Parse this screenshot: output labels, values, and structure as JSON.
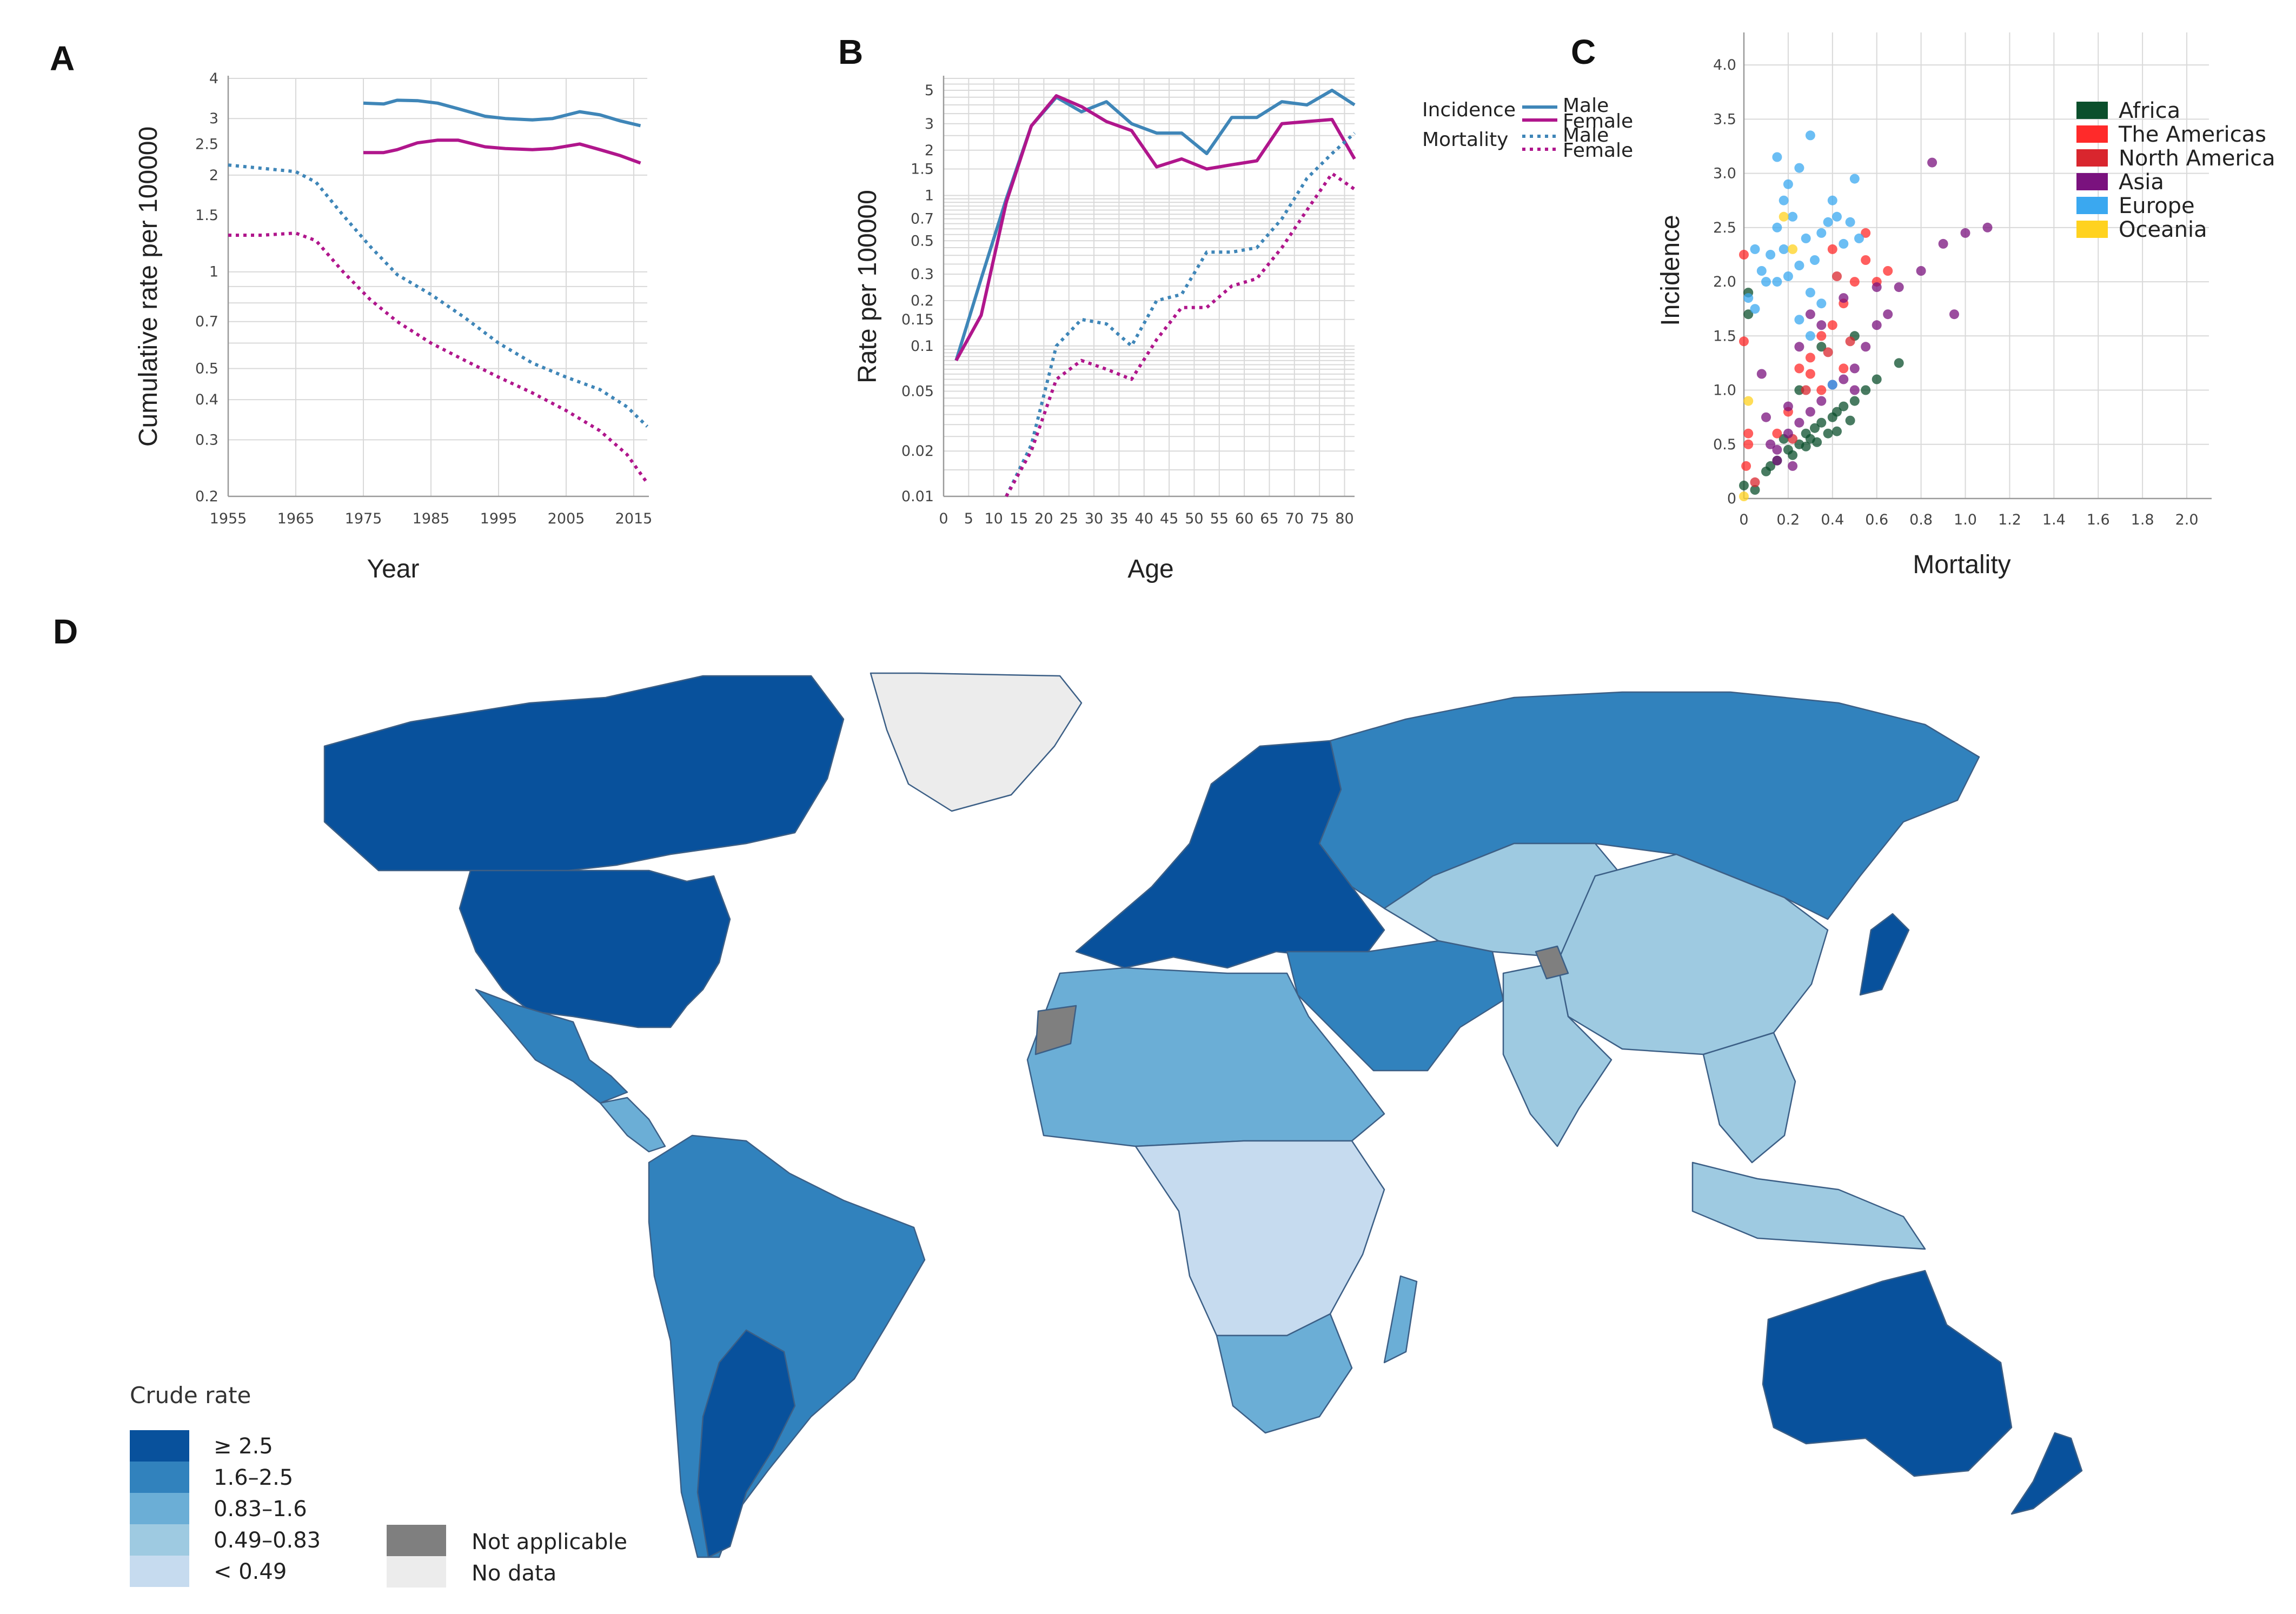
{
  "panels": {
    "A": "A",
    "B": "B",
    "C": "C",
    "D": "D"
  },
  "colors": {
    "incidence": "#3f86b8",
    "female": "#b0168c",
    "Africa": "#0b4f2c",
    "The Americas": "#ff2a2a",
    "North America": "#d9262e",
    "Asia": "#7a127e",
    "Europe": "#3aa8f0",
    "Oceania": "#ffd21f",
    "rate_ge_2_5": "#08519c",
    "rate_1_6_2_5": "#3182bd",
    "rate_0_83_1_6": "#6baed6",
    "rate_0_49_0_83": "#9ecae1",
    "rate_lt_0_49": "#c6dbef",
    "not_applicable": "#7f7f7f",
    "no_data": "#ececec"
  },
  "chart_data": [
    {
      "id": "A",
      "type": "line",
      "xlabel": "Year",
      "ylabel": "Cumulative rate per 100000",
      "yscale": "log",
      "xlim": [
        1955,
        2017
      ],
      "ylim": [
        0.2,
        4
      ],
      "xticks": [
        1955,
        1965,
        1975,
        1985,
        1995,
        2005,
        2015
      ],
      "yticks": [
        0.2,
        0.3,
        0.4,
        0.5,
        0.7,
        1,
        1.5,
        2,
        2.5,
        3,
        4
      ],
      "ytick_labels": [
        "0.2",
        "0.3",
        "0.4",
        "0.5",
        "0.7",
        "1",
        "1.5",
        "2",
        "2.5",
        "3",
        "4"
      ],
      "series": [
        {
          "name": "Incidence Male",
          "style": "solid",
          "color": "#3f86b8",
          "x": [
            1975,
            1978,
            1980,
            1983,
            1986,
            1989,
            1993,
            1996,
            2000,
            2003,
            2007,
            2010,
            2013,
            2016
          ],
          "y": [
            3.35,
            3.33,
            3.42,
            3.41,
            3.35,
            3.22,
            3.05,
            3.0,
            2.97,
            3.0,
            3.15,
            3.08,
            2.95,
            2.85
          ]
        },
        {
          "name": "Incidence Female",
          "style": "solid",
          "color": "#b0168c",
          "x": [
            1975,
            1978,
            1980,
            1983,
            1986,
            1989,
            1993,
            1996,
            2000,
            2003,
            2007,
            2010,
            2013,
            2016
          ],
          "y": [
            2.35,
            2.35,
            2.4,
            2.52,
            2.57,
            2.57,
            2.45,
            2.42,
            2.4,
            2.42,
            2.5,
            2.4,
            2.3,
            2.18
          ]
        },
        {
          "name": "Mortality Male",
          "style": "dotted",
          "color": "#3f86b8",
          "x": [
            1955,
            1960,
            1965,
            1968,
            1972,
            1976,
            1980,
            1985,
            1990,
            1995,
            2000,
            2005,
            2010,
            2014,
            2017
          ],
          "y": [
            2.15,
            2.1,
            2.05,
            1.9,
            1.5,
            1.2,
            0.98,
            0.85,
            0.72,
            0.6,
            0.52,
            0.47,
            0.43,
            0.38,
            0.33
          ]
        },
        {
          "name": "Mortality Female",
          "style": "dotted",
          "color": "#b0168c",
          "x": [
            1955,
            1960,
            1965,
            1968,
            1972,
            1976,
            1980,
            1985,
            1990,
            1995,
            2000,
            2005,
            2010,
            2014,
            2017
          ],
          "y": [
            1.3,
            1.3,
            1.32,
            1.25,
            1.0,
            0.82,
            0.7,
            0.6,
            0.53,
            0.47,
            0.42,
            0.37,
            0.32,
            0.27,
            0.22
          ]
        }
      ]
    },
    {
      "id": "B",
      "type": "line",
      "xlabel": "Age",
      "ylabel": "Rate per 100000",
      "yscale": "log",
      "xlim": [
        0,
        82
      ],
      "ylim": [
        0.01,
        6
      ],
      "xticks": [
        0,
        5,
        10,
        15,
        20,
        25,
        30,
        35,
        40,
        45,
        50,
        55,
        60,
        65,
        70,
        75,
        80
      ],
      "yticks": [
        0.01,
        0.02,
        0.05,
        0.1,
        0.15,
        0.2,
        0.3,
        0.5,
        0.7,
        1,
        1.5,
        2,
        3,
        5
      ],
      "ytick_labels": [
        "0.01",
        "0.02",
        "0.05",
        "0.1",
        "0.15",
        "0.2",
        "0.3",
        "0.5",
        "0.7",
        "1",
        "1.5",
        "2",
        "3",
        "5"
      ],
      "legend": {
        "incidence_label": "Incidence",
        "mortality_label": "Mortality",
        "male_label": "Male",
        "female_label": "Female"
      },
      "series": [
        {
          "name": "Incidence Male",
          "style": "solid",
          "color": "#3f86b8",
          "x": [
            2.5,
            7.5,
            12.5,
            17.5,
            22.5,
            27.5,
            32.5,
            37.5,
            42.5,
            47.5,
            52.5,
            57.5,
            62.5,
            67.5,
            72.5,
            77.5,
            82
          ],
          "y": [
            0.08,
            0.28,
            0.95,
            2.9,
            4.5,
            3.6,
            4.2,
            3.0,
            2.6,
            2.6,
            1.9,
            3.3,
            3.3,
            4.2,
            4.0,
            5.0,
            4.0
          ]
        },
        {
          "name": "Incidence Female",
          "style": "solid",
          "color": "#b0168c",
          "x": [
            2.5,
            7.5,
            12.5,
            17.5,
            22.5,
            27.5,
            32.5,
            37.5,
            42.5,
            47.5,
            52.5,
            57.5,
            62.5,
            67.5,
            72.5,
            77.5,
            82
          ],
          "y": [
            0.08,
            0.16,
            0.9,
            2.9,
            4.6,
            3.9,
            3.1,
            2.7,
            1.55,
            1.75,
            1.5,
            1.6,
            1.7,
            3.0,
            3.1,
            3.2,
            1.75
          ]
        },
        {
          "name": "Mortality Male",
          "style": "dotted",
          "color": "#3f86b8",
          "x": [
            12.5,
            17.5,
            22.5,
            27.5,
            32.5,
            37.5,
            42.5,
            47.5,
            52.5,
            57.5,
            62.5,
            67.5,
            72.5,
            77.5,
            82
          ],
          "y": [
            0.01,
            0.022,
            0.1,
            0.15,
            0.14,
            0.1,
            0.2,
            0.22,
            0.42,
            0.42,
            0.45,
            0.7,
            1.3,
            1.9,
            2.6
          ]
        },
        {
          "name": "Mortality Female",
          "style": "dotted",
          "color": "#b0168c",
          "x": [
            12.5,
            17.5,
            22.5,
            27.5,
            32.5,
            37.5,
            42.5,
            47.5,
            52.5,
            57.5,
            62.5,
            67.5,
            72.5,
            77.5,
            82
          ],
          "y": [
            0.01,
            0.02,
            0.06,
            0.08,
            0.07,
            0.06,
            0.11,
            0.18,
            0.18,
            0.25,
            0.28,
            0.45,
            0.8,
            1.4,
            1.1
          ]
        }
      ]
    },
    {
      "id": "C",
      "type": "scatter",
      "xlabel": "Mortality",
      "ylabel": "Incidence",
      "xlim": [
        0,
        2.1
      ],
      "ylim": [
        0,
        4.3
      ],
      "xticks": [
        0,
        0.2,
        0.4,
        0.6,
        0.8,
        1.0,
        1.2,
        1.4,
        1.6,
        1.8,
        2.0
      ],
      "xtick_labels": [
        "0",
        "0.2",
        "0.4",
        "0.6",
        "0.8",
        "1.0",
        "1.2",
        "1.4",
        "1.6",
        "1.8",
        "2.0"
      ],
      "yticks": [
        0,
        0.5,
        1.0,
        1.5,
        2.0,
        2.5,
        3.0,
        3.5,
        4.0
      ],
      "ytick_labels": [
        "0",
        "0.5",
        "1.0",
        "1.5",
        "2.0",
        "2.5",
        "3.0",
        "3.5",
        "4.0"
      ],
      "legend": [
        "Africa",
        "The Americas",
        "North America",
        "Asia",
        "Europe",
        "Oceania"
      ],
      "series": [
        {
          "name": "Africa",
          "color": "#0b4f2c",
          "points": [
            [
              0.0,
              0.12
            ],
            [
              0.05,
              0.08
            ],
            [
              0.12,
              0.3
            ],
            [
              0.15,
              0.35
            ],
            [
              0.2,
              0.45
            ],
            [
              0.22,
              0.4
            ],
            [
              0.25,
              0.5
            ],
            [
              0.28,
              0.6
            ],
            [
              0.3,
              0.55
            ],
            [
              0.32,
              0.65
            ],
            [
              0.35,
              0.7
            ],
            [
              0.38,
              0.6
            ],
            [
              0.4,
              0.75
            ],
            [
              0.42,
              0.8
            ],
            [
              0.45,
              0.85
            ],
            [
              0.5,
              0.9
            ],
            [
              0.55,
              1.0
            ],
            [
              0.6,
              1.1
            ],
            [
              0.7,
              1.25
            ],
            [
              0.5,
              1.5
            ],
            [
              0.35,
              1.4
            ],
            [
              0.25,
              1.0
            ],
            [
              0.18,
              0.55
            ],
            [
              0.1,
              0.25
            ],
            [
              0.28,
              0.48
            ],
            [
              0.33,
              0.52
            ],
            [
              0.42,
              0.62
            ],
            [
              0.48,
              0.72
            ],
            [
              0.02,
              1.7
            ],
            [
              0.02,
              1.9
            ]
          ]
        },
        {
          "name": "The Americas",
          "color": "#ff2a2a",
          "points": [
            [
              0.0,
              2.25
            ],
            [
              0.0,
              1.45
            ],
            [
              0.02,
              0.5
            ],
            [
              0.01,
              0.3
            ],
            [
              0.02,
              0.6
            ],
            [
              0.15,
              0.6
            ],
            [
              0.2,
              0.8
            ],
            [
              0.25,
              1.2
            ],
            [
              0.3,
              1.3
            ],
            [
              0.35,
              1.5
            ],
            [
              0.4,
              1.6
            ],
            [
              0.45,
              1.8
            ],
            [
              0.5,
              2.0
            ],
            [
              0.55,
              2.2
            ],
            [
              0.6,
              2.0
            ],
            [
              0.65,
              2.1
            ],
            [
              0.4,
              2.3
            ],
            [
              0.45,
              1.2
            ],
            [
              0.35,
              1.0
            ],
            [
              0.3,
              1.15
            ],
            [
              0.55,
              2.45
            ]
          ]
        },
        {
          "name": "North America",
          "color": "#d9262e",
          "points": [
            [
              0.05,
              0.15
            ],
            [
              0.22,
              0.55
            ],
            [
              0.28,
              1.0
            ],
            [
              0.38,
              1.35
            ],
            [
              0.42,
              2.05
            ],
            [
              0.48,
              1.45
            ]
          ]
        },
        {
          "name": "Asia",
          "color": "#7a127e",
          "points": [
            [
              0.08,
              1.15
            ],
            [
              0.1,
              0.75
            ],
            [
              0.12,
              0.5
            ],
            [
              0.15,
              0.35
            ],
            [
              0.2,
              0.6
            ],
            [
              0.25,
              0.7
            ],
            [
              0.3,
              0.8
            ],
            [
              0.35,
              0.9
            ],
            [
              0.4,
              1.05
            ],
            [
              0.45,
              1.1
            ],
            [
              0.5,
              1.2
            ],
            [
              0.55,
              1.4
            ],
            [
              0.6,
              1.6
            ],
            [
              0.65,
              1.7
            ],
            [
              0.7,
              1.95
            ],
            [
              0.8,
              2.1
            ],
            [
              0.85,
              3.1
            ],
            [
              0.95,
              1.7
            ],
            [
              1.0,
              2.45
            ],
            [
              1.1,
              2.5
            ],
            [
              0.9,
              2.35
            ],
            [
              0.6,
              1.95
            ],
            [
              0.5,
              1.0
            ],
            [
              0.3,
              1.7
            ],
            [
              0.35,
              1.6
            ],
            [
              0.45,
              1.85
            ],
            [
              0.2,
              0.85
            ],
            [
              0.15,
              0.45
            ],
            [
              0.22,
              0.3
            ],
            [
              0.25,
              1.4
            ]
          ]
        },
        {
          "name": "Europe",
          "color": "#3aa8f0",
          "points": [
            [
              0.05,
              2.3
            ],
            [
              0.08,
              2.1
            ],
            [
              0.1,
              2.0
            ],
            [
              0.12,
              2.25
            ],
            [
              0.15,
              2.5
            ],
            [
              0.15,
              3.15
            ],
            [
              0.18,
              2.75
            ],
            [
              0.2,
              2.9
            ],
            [
              0.22,
              2.6
            ],
            [
              0.25,
              3.05
            ],
            [
              0.28,
              2.4
            ],
            [
              0.3,
              3.35
            ],
            [
              0.32,
              2.2
            ],
            [
              0.35,
              2.45
            ],
            [
              0.38,
              2.55
            ],
            [
              0.4,
              2.75
            ],
            [
              0.42,
              2.6
            ],
            [
              0.45,
              2.35
            ],
            [
              0.48,
              2.55
            ],
            [
              0.5,
              2.95
            ],
            [
              0.52,
              2.4
            ],
            [
              0.2,
              2.05
            ],
            [
              0.25,
              2.15
            ],
            [
              0.3,
              1.9
            ],
            [
              0.35,
              1.8
            ],
            [
              0.15,
              2.0
            ],
            [
              0.18,
              2.3
            ],
            [
              0.4,
              1.05
            ],
            [
              0.3,
              1.5
            ],
            [
              0.25,
              1.65
            ],
            [
              0.05,
              1.75
            ],
            [
              0.02,
              1.85
            ]
          ]
        },
        {
          "name": "Oceania",
          "color": "#ffd21f",
          "points": [
            [
              0.0,
              0.02
            ],
            [
              0.02,
              0.9
            ],
            [
              0.18,
              2.6
            ],
            [
              0.22,
              2.3
            ]
          ]
        }
      ]
    }
  ],
  "map": {
    "legend_title": "Crude rate",
    "legend_items": [
      "≥ 2.5",
      "1.6–2.5",
      "0.83–1.6",
      "0.49–0.83",
      "< 0.49"
    ],
    "not_applicable_label": "Not applicable",
    "no_data_label": "No data"
  }
}
